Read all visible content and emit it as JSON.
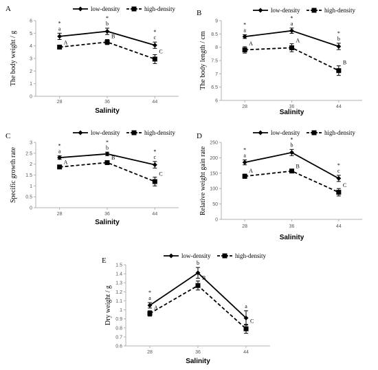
{
  "chart_data": [
    {
      "letter": "A",
      "type": "line",
      "xlabel": "Salinity",
      "ylabel": "The body weight / g",
      "categories": [
        "28",
        "36",
        "44"
      ],
      "ylim": [
        0,
        6
      ],
      "yticks": [
        "0",
        "1",
        "2",
        "3",
        "4",
        "5",
        "6"
      ],
      "series": [
        {
          "name": "low-density",
          "values": [
            4.75,
            5.15,
            4.05
          ],
          "errors": [
            0.25,
            0.25,
            0.25
          ],
          "labels": [
            "*\na",
            "*\nb",
            "*\nc"
          ],
          "color": "#000000",
          "dash": false,
          "marker": "diamond"
        },
        {
          "name": "high-density",
          "values": [
            3.9,
            4.3,
            2.95
          ],
          "errors": [
            0.12,
            0.2,
            0.35
          ],
          "labels": [
            "A",
            "B",
            "C"
          ],
          "color": "#000000",
          "dash": true,
          "marker": "square"
        }
      ]
    },
    {
      "letter": "B",
      "type": "line",
      "xlabel": "Salinity",
      "ylabel": "The body length / cm",
      "categories": [
        "28",
        "36",
        "44"
      ],
      "ylim": [
        6,
        9
      ],
      "yticks": [
        "6",
        "6.5",
        "7",
        "7.5",
        "8",
        "8.5",
        "9"
      ],
      "series": [
        {
          "name": "low-density",
          "values": [
            8.4,
            8.62,
            8.03
          ],
          "errors": [
            0.07,
            0.1,
            0.12
          ],
          "labels": [
            "*\na",
            "*\na",
            "*\nb"
          ],
          "color": "#000000",
          "dash": false,
          "marker": "diamond"
        },
        {
          "name": "high-density",
          "values": [
            7.9,
            7.98,
            7.12
          ],
          "errors": [
            0.12,
            0.15,
            0.18
          ],
          "labels": [
            "A",
            "A",
            "B"
          ],
          "color": "#000000",
          "dash": true,
          "marker": "square"
        }
      ]
    },
    {
      "letter": "C",
      "type": "line",
      "xlabel": "Salinity",
      "ylabel": "Specific growth rate",
      "categories": [
        "28",
        "36",
        "44"
      ],
      "ylim": [
        0,
        3
      ],
      "yticks": [
        "0",
        "0.5",
        "1",
        "1.5",
        "2",
        "2.5",
        "3"
      ],
      "series": [
        {
          "name": "low-density",
          "values": [
            2.3,
            2.47,
            1.97
          ],
          "errors": [
            0.08,
            0.08,
            0.15
          ],
          "labels": [
            "*\na",
            "*\nb",
            "*\nc"
          ],
          "color": "#000000",
          "dash": false,
          "marker": "diamond"
        },
        {
          "name": "high-density",
          "values": [
            1.87,
            2.07,
            1.2
          ],
          "errors": [
            0.08,
            0.08,
            0.2
          ],
          "labels": [
            "A",
            "B",
            "C"
          ],
          "color": "#000000",
          "dash": true,
          "marker": "square"
        }
      ]
    },
    {
      "letter": "D",
      "type": "line",
      "xlabel": "Salinity",
      "ylabel": "Relative weight gain rate",
      "categories": [
        "28",
        "36",
        "44"
      ],
      "ylim": [
        0,
        250
      ],
      "yticks": [
        "0",
        "50",
        "100",
        "150",
        "200",
        "250"
      ],
      "series": [
        {
          "name": "low-density",
          "values": [
            185,
            217,
            133
          ],
          "errors": [
            8,
            10,
            10
          ],
          "labels": [
            "*\na",
            "*\nb",
            "*\nc"
          ],
          "color": "#000000",
          "dash": false,
          "marker": "diamond"
        },
        {
          "name": "high-density",
          "values": [
            140,
            157,
            88
          ],
          "errors": [
            7,
            5,
            12
          ],
          "labels": [
            "A",
            "B",
            "C"
          ],
          "color": "#000000",
          "dash": true,
          "marker": "square"
        }
      ]
    },
    {
      "letter": "E",
      "type": "line",
      "xlabel": "Salinity",
      "ylabel": "Dry weight / g",
      "categories": [
        "28",
        "36",
        "44"
      ],
      "ylim": [
        0.6,
        1.5
      ],
      "yticks": [
        "0.6",
        "0.7",
        "0.8",
        "0.9",
        "1",
        "1.1",
        "1.2",
        "1.3",
        "1.4",
        "1.5"
      ],
      "series": [
        {
          "name": "low-density",
          "values": [
            1.05,
            1.41,
            0.91
          ],
          "errors": [
            0.03,
            0.06,
            0.08
          ],
          "labels": [
            "*\na",
            "b",
            "a"
          ],
          "color": "#000000",
          "dash": false,
          "marker": "diamond"
        },
        {
          "name": "high-density",
          "values": [
            0.96,
            1.27,
            0.79
          ],
          "errors": [
            0.03,
            0.05,
            0.05
          ],
          "labels": [
            "A",
            "B",
            "C"
          ],
          "color": "#000000",
          "dash": true,
          "marker": "square"
        }
      ]
    }
  ]
}
